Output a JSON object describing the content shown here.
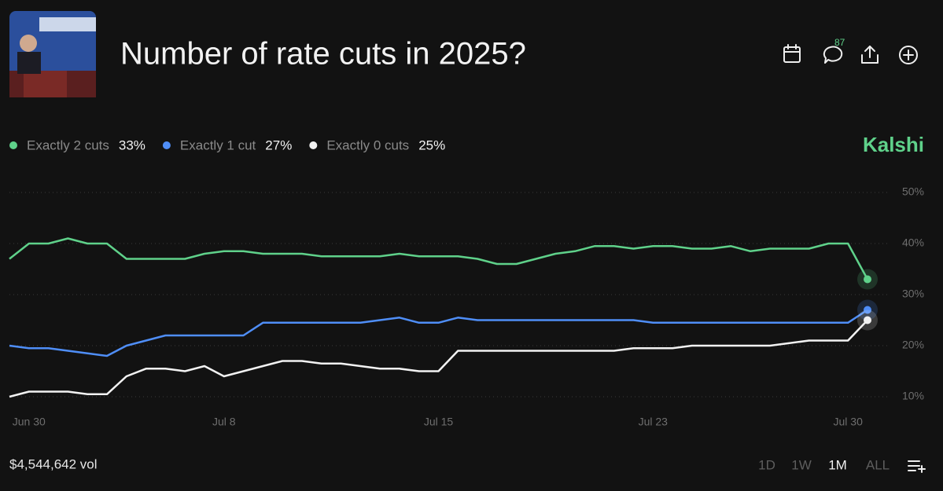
{
  "header": {
    "title": "Number of rate cuts in 2025?",
    "comment_count": 87,
    "brand": "Kalshi"
  },
  "footer": {
    "volume": "$4,544,642 vol",
    "ranges": [
      "1D",
      "1W",
      "1M",
      "ALL"
    ],
    "selected_range": "1M"
  },
  "chart_data": {
    "type": "line",
    "categories": [
      null,
      "Jun 30",
      null,
      null,
      null,
      null,
      null,
      null,
      null,
      null,
      null,
      "Jul 8",
      null,
      null,
      null,
      null,
      null,
      null,
      null,
      null,
      null,
      null,
      "Jul 15",
      null,
      null,
      null,
      null,
      null,
      null,
      null,
      null,
      null,
      null,
      "Jul 23",
      null,
      null,
      null,
      null,
      null,
      null,
      null,
      null,
      null,
      "Jul 30",
      null
    ],
    "ylim": [
      10,
      50
    ],
    "yticks": [
      {
        "value": 10,
        "label": "10%"
      },
      {
        "value": 20,
        "label": "20%"
      },
      {
        "value": 30,
        "label": "30%"
      },
      {
        "value": 40,
        "label": "40%"
      },
      {
        "value": 50,
        "label": "50%"
      }
    ],
    "grid": true,
    "series": [
      {
        "name": "Exactly 2 cuts",
        "color": "#5fd18a",
        "values": [
          37,
          40,
          40,
          41,
          40,
          40,
          37,
          37,
          37,
          37,
          38,
          38.5,
          38.5,
          38,
          38,
          38,
          37.5,
          37.5,
          37.5,
          37.5,
          38,
          37.5,
          37.5,
          37.5,
          37,
          36,
          36,
          37,
          38,
          38.5,
          39.5,
          39.5,
          39,
          39.5,
          39.5,
          39,
          39,
          39.5,
          38.5,
          39,
          39,
          39,
          40,
          40,
          33
        ],
        "value_labels": [
          null,
          null,
          null,
          null,
          null,
          null,
          null,
          null,
          null,
          null,
          null,
          null,
          null,
          null,
          null,
          null,
          null,
          null,
          null,
          null,
          null,
          null,
          null,
          null,
          null,
          null,
          null,
          null,
          null,
          null,
          null,
          null,
          null,
          null,
          null,
          null,
          null,
          null,
          null,
          null,
          null,
          null,
          null,
          null,
          "33%"
        ]
      },
      {
        "name": "Exactly 1 cut",
        "color": "#4f8ef7",
        "values": [
          20,
          19.5,
          19.5,
          19,
          18.5,
          18,
          20,
          21,
          22,
          22,
          22,
          22,
          22,
          24.5,
          24.5,
          24.5,
          24.5,
          24.5,
          24.5,
          25,
          25.5,
          24.5,
          24.5,
          25.5,
          25,
          25,
          25,
          25,
          25,
          25,
          25,
          25,
          25,
          24.5,
          24.5,
          24.5,
          24.5,
          24.5,
          24.5,
          24.5,
          24.5,
          24.5,
          24.5,
          24.5,
          27
        ],
        "value_labels": [
          null,
          null,
          null,
          null,
          null,
          null,
          null,
          null,
          null,
          null,
          null,
          null,
          null,
          null,
          null,
          null,
          null,
          null,
          null,
          null,
          null,
          null,
          null,
          null,
          null,
          null,
          null,
          null,
          null,
          null,
          null,
          null,
          null,
          null,
          null,
          null,
          null,
          null,
          null,
          null,
          null,
          null,
          null,
          null,
          "27%"
        ]
      },
      {
        "name": "Exactly 0 cuts",
        "color": "#f2f2f2",
        "values": [
          10,
          11,
          11,
          11,
          10.5,
          10.5,
          14,
          15.5,
          15.5,
          15,
          16,
          14,
          15,
          16,
          17,
          17,
          16.5,
          16.5,
          16,
          15.5,
          15.5,
          15,
          15,
          19,
          19,
          19,
          19,
          19,
          19,
          19,
          19,
          19,
          19.5,
          19.5,
          19.5,
          20,
          20,
          20,
          20,
          20,
          20.5,
          21,
          21,
          21,
          25
        ],
        "value_labels": [
          null,
          null,
          null,
          null,
          null,
          null,
          null,
          null,
          null,
          null,
          null,
          null,
          null,
          null,
          null,
          null,
          null,
          null,
          null,
          null,
          null,
          null,
          null,
          null,
          null,
          null,
          null,
          null,
          null,
          null,
          null,
          null,
          null,
          null,
          null,
          null,
          null,
          null,
          null,
          null,
          null,
          null,
          null,
          null,
          "25%"
        ]
      }
    ]
  }
}
